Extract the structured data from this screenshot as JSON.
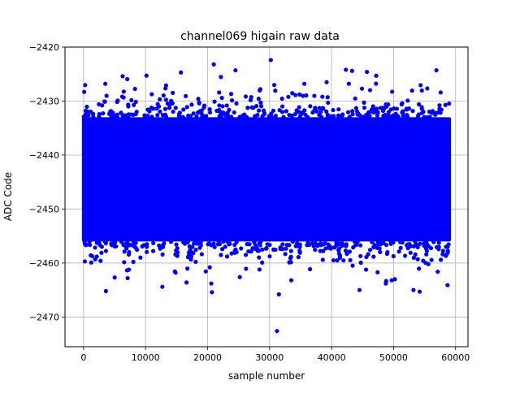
{
  "chart_data": {
    "type": "scatter",
    "title": "channel069 higain raw data",
    "xlabel": "sample number",
    "ylabel": "ADC Code",
    "xlim": [
      -3000,
      62000
    ],
    "ylim": [
      -2475.5,
      -2420
    ],
    "xticks": [
      0,
      10000,
      20000,
      30000,
      40000,
      50000,
      60000
    ],
    "xtick_labels": [
      "0",
      "10000",
      "20000",
      "30000",
      "40000",
      "50000",
      "60000"
    ],
    "yticks": [
      -2470,
      -2460,
      -2450,
      -2440,
      -2430,
      -2420
    ],
    "ytick_labels": [
      "−2470",
      "−2460",
      "−2450",
      "−2440",
      "−2430",
      "−2420"
    ],
    "grid": true,
    "series": [
      {
        "color": "#0000ff",
        "marker": "circle",
        "n_samples": 59000,
        "band": {
          "x_range": [
            0,
            59000
          ],
          "dense_y_range": [
            -2456,
            -2433
          ],
          "center": -2444,
          "note": "samples densely cover this range"
        },
        "points": [
          [
            100,
            -2428.3
          ],
          [
            200,
            -2459.7
          ],
          [
            3500,
            -2426.8
          ],
          [
            3600,
            -2465.2
          ],
          [
            6300,
            -2425.4
          ],
          [
            7100,
            -2462.8
          ],
          [
            12700,
            -2464.4
          ],
          [
            13300,
            -2427.1
          ],
          [
            15700,
            -2424.7
          ],
          [
            16600,
            -2463.6
          ],
          [
            20600,
            -2463.8
          ],
          [
            20700,
            -2465.4
          ],
          [
            21000,
            -2423.2
          ],
          [
            24500,
            -2424.3
          ],
          [
            25200,
            -2462.6
          ],
          [
            28500,
            -2427.8
          ],
          [
            30200,
            -2422.4
          ],
          [
            31200,
            -2472.6
          ],
          [
            31500,
            -2465.8
          ],
          [
            33500,
            -2463.2
          ],
          [
            35600,
            -2426.8
          ],
          [
            39200,
            -2426.5
          ],
          [
            42300,
            -2424.2
          ],
          [
            43300,
            -2424.4
          ],
          [
            44500,
            -2465.0
          ],
          [
            45700,
            -2424.6
          ],
          [
            47200,
            -2425.3
          ],
          [
            49700,
            -2463.2
          ],
          [
            50200,
            -2463.0
          ],
          [
            53200,
            -2465.0
          ],
          [
            54200,
            -2465.3
          ],
          [
            56900,
            -2424.3
          ],
          [
            57600,
            -2428.4
          ],
          [
            58700,
            -2464.1
          ]
        ]
      }
    ]
  }
}
